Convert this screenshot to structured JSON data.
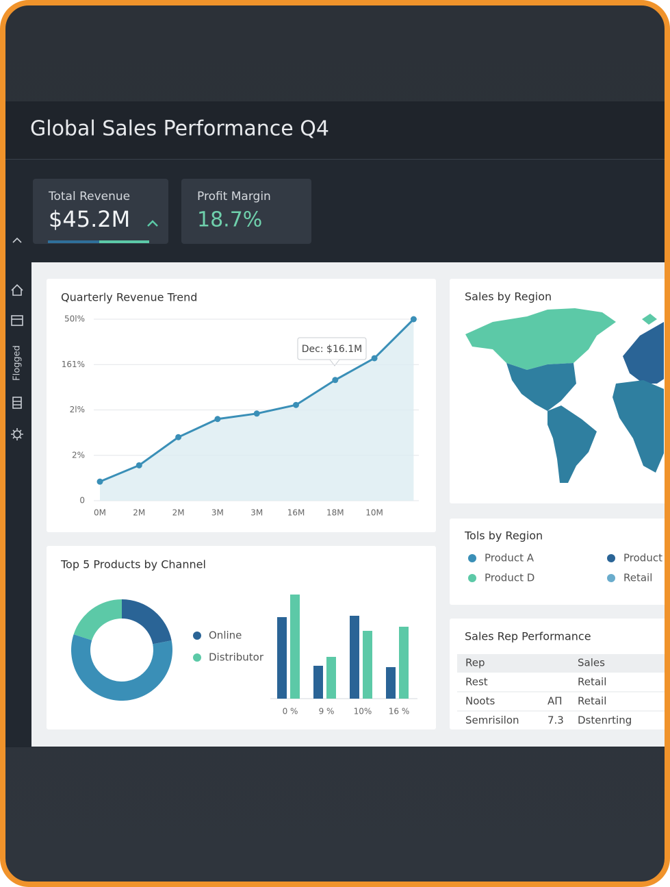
{
  "header": {
    "title": "Global Sales Performance Q4"
  },
  "kpis": [
    {
      "label": "Total Revenue",
      "value": "$45.2M"
    },
    {
      "label": "Profit Margin",
      "value": "18.7%"
    }
  ],
  "sidebar": {
    "label": "Flogged"
  },
  "region_map": {
    "title": "Sales by Region"
  },
  "region_legend": {
    "title": "Tols by Region",
    "items": [
      {
        "name": "Product A",
        "color": "#3a8fb7"
      },
      {
        "name": "Product D",
        "color": "#5cc9a7"
      },
      {
        "name": "Product",
        "color": "#2a6496"
      },
      {
        "name": "Retail",
        "color": "#6aaccc"
      }
    ]
  },
  "rep_table": {
    "title": "Sales Rep Performance",
    "header": [
      "Rep",
      null,
      "Sales"
    ],
    "rows": [
      [
        "Rest",
        null,
        "Retail"
      ],
      [
        "Noots",
        "AП",
        "Retail"
      ],
      [
        "Semrisilon",
        "7.3",
        "Dstenrting"
      ]
    ]
  },
  "chart_data": [
    {
      "type": "line",
      "title": "Quarterly Revenue Trend",
      "categories": [
        "0M",
        "2M",
        "2M",
        "3M",
        "3M",
        "16M",
        "18M",
        "10M",
        null
      ],
      "series": [
        {
          "color": "#3a8fb7",
          "values": [
            0.42,
            0.78,
            1.4,
            1.8,
            1.92,
            2.11,
            2.66,
            3.14,
            4.0
          ]
        }
      ],
      "ylim": [
        0,
        4
      ],
      "yticks": [
        0,
        {
          "value": 1,
          "label": "2%"
        },
        {
          "value": 2,
          "label": "2l%"
        },
        {
          "value": 3,
          "label": "161%"
        },
        {
          "value": 4,
          "label": "50l%"
        }
      ],
      "grid": true,
      "area": true,
      "annotation": "Dec: $16.1M"
    },
    {
      "type": "donut",
      "title": "Top 5 Products by Channel",
      "categories": [
        "Online",
        null,
        "Distributor"
      ],
      "values": [
        22,
        58,
        20
      ],
      "colors": [
        "#2a6496",
        "#3a8fb7",
        "#5cc9a7"
      ]
    },
    {
      "type": "bar",
      "categories": [
        "0 %",
        "9 %",
        "10%",
        "16 %"
      ],
      "series": [
        {
          "color": "#2a6496",
          "values": [
            119,
            48,
            121,
            46
          ]
        },
        {
          "color": "#5cc9a7",
          "values": [
            152,
            61,
            99,
            105
          ]
        }
      ],
      "ylim": [
        0,
        160
      ]
    }
  ]
}
